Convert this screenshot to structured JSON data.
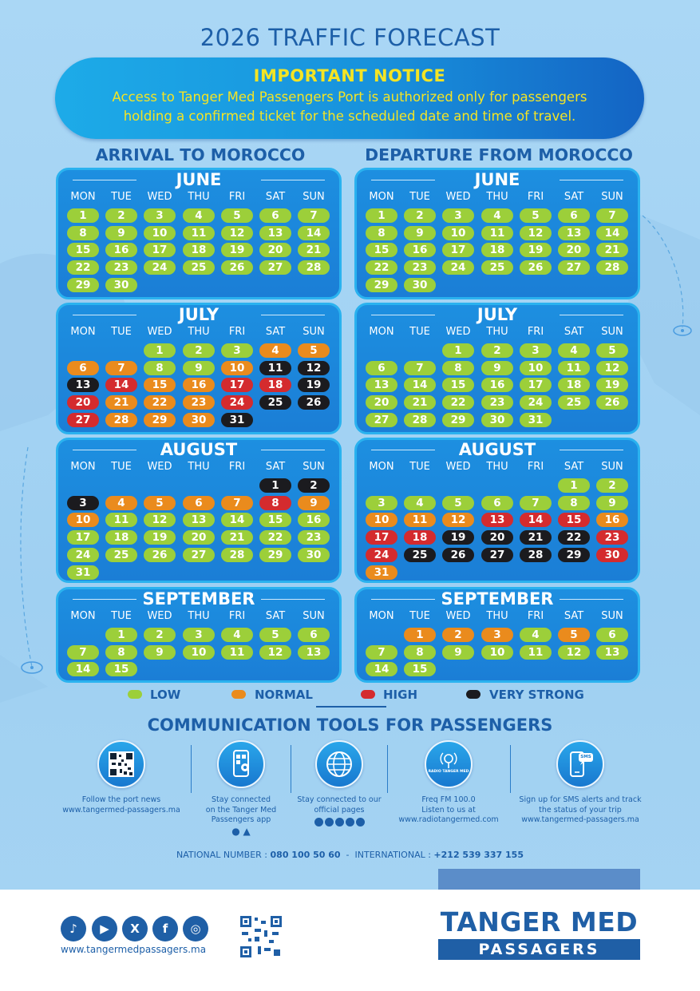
{
  "title": "2026 TRAFFIC FORECAST",
  "notice": {
    "heading": "IMPORTANT NOTICE",
    "text": "Access to Tanger Med Passengers Port is authorized only for passengers holding a confirmed ticket for the scheduled date and time of travel."
  },
  "columns": {
    "arrival": "ARRIVAL TO MOROCCO",
    "departure": "DEPARTURE FROM MOROCCO"
  },
  "weekdays": [
    "MON",
    "TUE",
    "WED",
    "THU",
    "FRI",
    "SAT",
    "SUN"
  ],
  "calendars": {
    "arrival": [
      {
        "month": "JUNE",
        "start": 0,
        "days": 30,
        "levels": {}
      },
      {
        "month": "JULY",
        "start": 2,
        "days": 31,
        "levels": {
          "4": "N",
          "5": "N",
          "6": "N",
          "7": "N",
          "10": "N",
          "11": "V",
          "12": "V",
          "13": "V",
          "14": "H",
          "15": "N",
          "16": "N",
          "17": "H",
          "18": "H",
          "19": "V",
          "20": "H",
          "21": "N",
          "22": "N",
          "23": "N",
          "24": "H",
          "25": "V",
          "26": "V",
          "27": "H",
          "28": "N",
          "29": "N",
          "30": "N",
          "31": "V"
        }
      },
      {
        "month": "AUGUST",
        "start": 5,
        "days": 31,
        "levels": {
          "1": "V",
          "2": "V",
          "3": "V",
          "4": "N",
          "5": "N",
          "6": "N",
          "7": "N",
          "8": "H",
          "9": "N",
          "10": "N"
        }
      },
      {
        "month": "SEPTEMBER",
        "start": 1,
        "days": 15,
        "levels": {}
      }
    ],
    "departure": [
      {
        "month": "JUNE",
        "start": 0,
        "days": 30,
        "levels": {}
      },
      {
        "month": "JULY",
        "start": 2,
        "days": 31,
        "levels": {}
      },
      {
        "month": "AUGUST",
        "start": 5,
        "days": 31,
        "levels": {
          "10": "N",
          "11": "N",
          "12": "N",
          "13": "H",
          "14": "H",
          "15": "H",
          "16": "N",
          "17": "H",
          "18": "H",
          "19": "V",
          "20": "V",
          "21": "V",
          "22": "V",
          "23": "H",
          "24": "H",
          "25": "V",
          "26": "V",
          "27": "V",
          "28": "V",
          "29": "V",
          "30": "H",
          "31": "N"
        }
      },
      {
        "month": "SEPTEMBER",
        "start": 1,
        "days": 15,
        "levels": {
          "1": "N",
          "2": "N",
          "3": "N",
          "5": "N"
        }
      }
    ]
  },
  "level_colors": {
    "L": "#9ccf3a",
    "N": "#ea8b1d",
    "H": "#d42b2e",
    "V": "#1b1b1f"
  },
  "legend": {
    "low": "LOW",
    "normal": "NORMAL",
    "high": "HIGH",
    "very_strong": "VERY STRONG"
  },
  "tools": {
    "title": "COMMUNICATION TOOLS FOR PASSENGERS",
    "items": [
      {
        "icon": "qr-code-icon",
        "line1": "Follow the port news",
        "line2": "",
        "line3": "",
        "url": "www.tangermed-passagers.ma"
      },
      {
        "icon": "mobile-app-icon",
        "line1": "Stay connected",
        "line2": "on the Tanger Med",
        "line3": "Passengers app",
        "url": ""
      },
      {
        "icon": "globe-icon",
        "line1": "Stay connected to our",
        "line2": "official pages",
        "line3": "",
        "url": ""
      },
      {
        "icon": "radio-icon",
        "line1": "Freq FM 100.0",
        "line2": "Listen to us at",
        "line3": "",
        "url": "www.radiotangermed.com"
      },
      {
        "icon": "sms-alert-icon",
        "line1": "Sign up for SMS alerts and track",
        "line2": "the status of your trip",
        "line3": "",
        "url": "www.tangermed-passagers.ma"
      }
    ],
    "radio_badge": "RADIO TANGER MED",
    "sms_badge": "SMS"
  },
  "contact": {
    "national_label": "NATIONAL NUMBER :",
    "national_number": "080 100 50 60",
    "dash": "-",
    "international_label": "INTERNATIONAL :",
    "international_number": "+212 539 337 155"
  },
  "footer": {
    "website": "www.tangermedpassagers.ma",
    "brand_top": "TANGER MED",
    "brand_bottom": "PASSAGERS",
    "social": [
      {
        "icon": "tiktok-icon",
        "glyph": "♪"
      },
      {
        "icon": "youtube-icon",
        "glyph": "▶"
      },
      {
        "icon": "x-icon",
        "glyph": "X"
      },
      {
        "icon": "facebook-icon",
        "glyph": "f"
      },
      {
        "icon": "instagram-icon",
        "glyph": "◎"
      }
    ]
  }
}
